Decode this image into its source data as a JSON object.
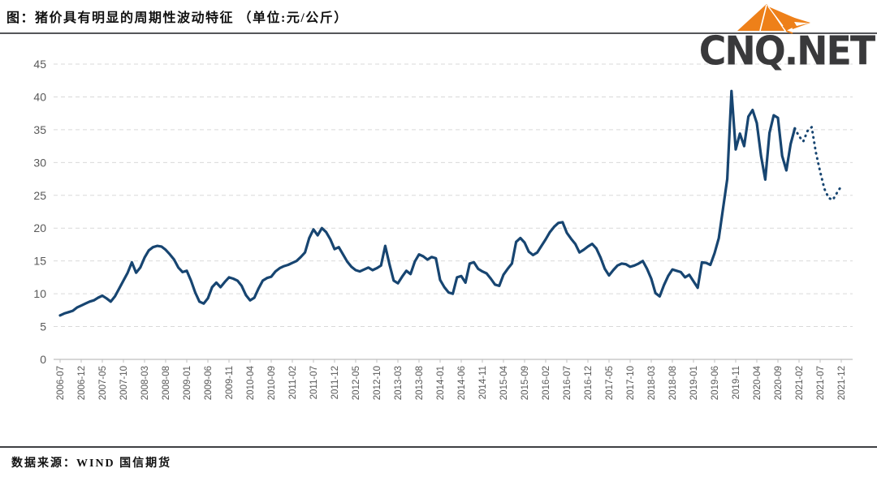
{
  "header": {
    "title": "图：猪价具有明显的周期性波动特征 （单位:元/公斤）"
  },
  "logo": {
    "text": "CNQ.NET",
    "mark": "origami-fox-icon",
    "mark_color": "#EE8019",
    "text_color": "#39393b"
  },
  "footer": {
    "source": "数据来源：WIND 国信期货"
  },
  "chart_data": {
    "type": "line",
    "title": "猪价具有明显的周期性波动特征",
    "unit": "元/公斤",
    "frequency": "monthly",
    "x_start": "2006-07",
    "x_end": "2021-12",
    "x_tick_labels": [
      "2006-07",
      "2006-12",
      "2007-05",
      "2007-10",
      "2008-03",
      "2008-08",
      "2009-01",
      "2009-06",
      "2009-11",
      "2010-04",
      "2010-09",
      "2011-02",
      "2011-07",
      "2011-12",
      "2012-05",
      "2012-10",
      "2013-03",
      "2013-08",
      "2014-01",
      "2014-06",
      "2014-11",
      "2015-04",
      "2015-09",
      "2016-02",
      "2016-07",
      "2016-12",
      "2017-05",
      "2017-10",
      "2018-03",
      "2018-08",
      "2019-01",
      "2019-06",
      "2019-11",
      "2020-04",
      "2020-09",
      "2021-02",
      "2021-07",
      "2021-12"
    ],
    "yticks": [
      0,
      5,
      10,
      15,
      20,
      25,
      30,
      35,
      40,
      45
    ],
    "ylim": [
      0,
      45
    ],
    "grid": "horizontal-dashed",
    "legend": "none",
    "series": [
      {
        "name": "猪价",
        "color": "#174571",
        "forecast_start_index": 175,
        "forecast_style": "dotted",
        "values": [
          6.7,
          7.0,
          7.2,
          7.4,
          7.9,
          8.2,
          8.5,
          8.8,
          9.0,
          9.4,
          9.7,
          9.3,
          8.8,
          9.6,
          10.8,
          12.0,
          13.2,
          14.8,
          13.2,
          14.0,
          15.5,
          16.6,
          17.1,
          17.3,
          17.2,
          16.7,
          16.0,
          15.2,
          14.0,
          13.3,
          13.5,
          12.0,
          10.2,
          8.8,
          8.5,
          9.3,
          11.0,
          11.7,
          11.0,
          11.8,
          12.5,
          12.3,
          12.0,
          11.2,
          9.8,
          9.0,
          9.4,
          10.8,
          12.0,
          12.4,
          12.6,
          13.4,
          13.9,
          14.2,
          14.4,
          14.7,
          15.0,
          15.6,
          16.3,
          18.5,
          19.8,
          18.9,
          20.0,
          19.4,
          18.3,
          16.8,
          17.1,
          16.0,
          14.9,
          14.1,
          13.6,
          13.4,
          13.7,
          14.0,
          13.6,
          13.9,
          14.3,
          17.3,
          14.5,
          12.0,
          11.6,
          12.6,
          13.5,
          13.0,
          14.9,
          16.0,
          15.7,
          15.2,
          15.6,
          15.4,
          12.1,
          11.0,
          10.2,
          10.0,
          12.5,
          12.7,
          11.7,
          14.6,
          14.8,
          13.8,
          13.4,
          13.1,
          12.3,
          11.4,
          11.2,
          12.9,
          13.8,
          14.6,
          17.9,
          18.5,
          17.8,
          16.4,
          15.9,
          16.3,
          17.3,
          18.3,
          19.4,
          20.2,
          20.8,
          20.9,
          19.3,
          18.4,
          17.6,
          16.3,
          16.7,
          17.2,
          17.6,
          16.9,
          15.5,
          13.8,
          12.8,
          13.6,
          14.3,
          14.6,
          14.5,
          14.1,
          14.3,
          14.6,
          15.0,
          13.8,
          12.3,
          10.1,
          9.6,
          11.3,
          12.7,
          13.7,
          13.5,
          13.3,
          12.5,
          12.9,
          11.9,
          10.9,
          14.8,
          14.7,
          14.4,
          16.2,
          18.5,
          23.0,
          27.5,
          40.9,
          32.0,
          34.4,
          32.5,
          37.0,
          38.0,
          36.0,
          31.0,
          27.4,
          34.5,
          37.2,
          36.8,
          31.0,
          28.8,
          32.8,
          35.2,
          34.0,
          33.2,
          34.8,
          35.4,
          31.5,
          28.6,
          26.0,
          24.6,
          24.3,
          25.4,
          26.4
        ]
      }
    ],
    "colors": {
      "line": "#174571",
      "gridline": "#d9d9d9",
      "axis": "#bfbfbf",
      "tick_label": "#595959"
    }
  }
}
